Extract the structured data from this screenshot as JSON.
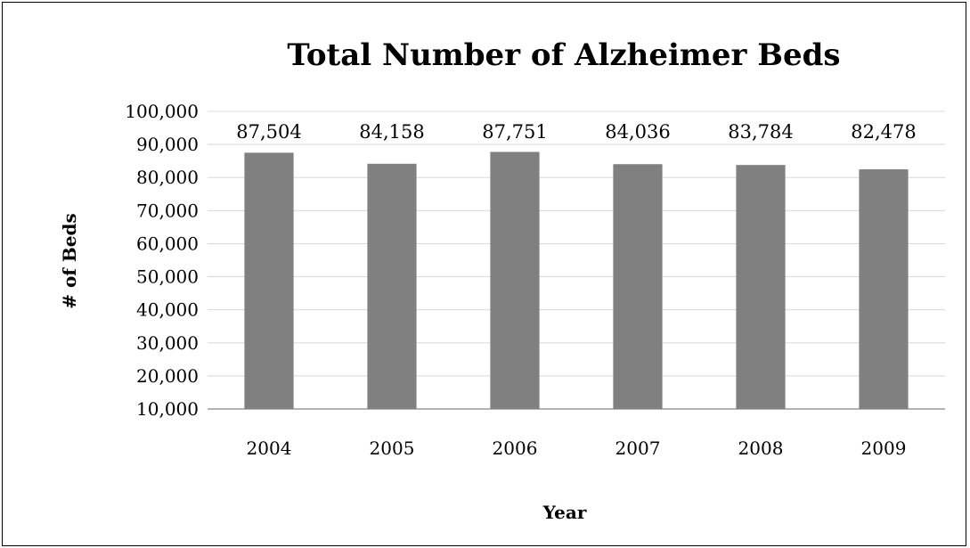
{
  "chart_data": {
    "type": "bar",
    "title": "Total Number of Alzheimer Beds",
    "xlabel": "Year",
    "ylabel": "# of Beds",
    "categories": [
      "2004",
      "2005",
      "2006",
      "2007",
      "2008",
      "2009"
    ],
    "values": [
      87504,
      84158,
      87751,
      84036,
      83784,
      82478
    ],
    "data_labels": [
      "87,504",
      "84,158",
      "87,751",
      "84,036",
      "83,784",
      "82,478"
    ],
    "ylim": [
      10000,
      100000
    ],
    "yticks": [
      10000,
      20000,
      30000,
      40000,
      50000,
      60000,
      70000,
      80000,
      90000,
      100000
    ],
    "ytick_labels": [
      "10,000",
      "20,000",
      "30,000",
      "40,000",
      "50,000",
      "60,000",
      "70,000",
      "80,000",
      "90,000",
      "100,000"
    ],
    "grid": true,
    "legend": "none",
    "colors": {
      "bar": "#808080",
      "grid": "#d9d9d9",
      "axis": "#868686",
      "text": "#000000",
      "border": "#000000"
    }
  }
}
